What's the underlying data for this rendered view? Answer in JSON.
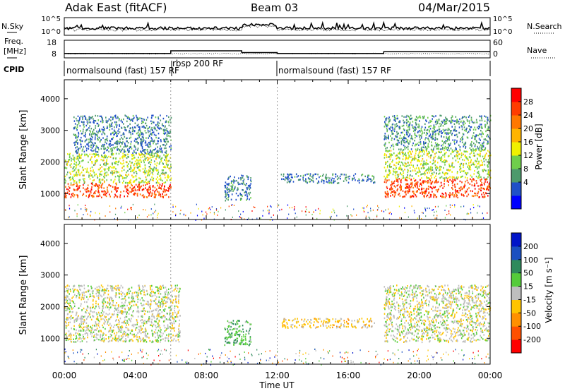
{
  "header": {
    "station": "Adak East (fitACF)",
    "beam": "Beam 03",
    "date": "04/Mar/2015"
  },
  "noise_panel": {
    "left_label": "N.Sky",
    "right_label": "N.Search",
    "ticks_left": [
      "10^5",
      "10^0"
    ],
    "ticks_right": [
      "10^5",
      "10^0"
    ]
  },
  "freq_panel": {
    "left_label_1": "Freq.",
    "left_label_2": "[MHz]",
    "ticks_left": [
      "18",
      "8"
    ],
    "right_label": "Nave",
    "ticks_right": [
      "60",
      "0"
    ]
  },
  "cpid": {
    "label": "CPID",
    "segments": [
      {
        "name": "normalsound (fast) 157 RF",
        "start_h": 0,
        "end_h": 6
      },
      {
        "name": "rbsp 200 RF",
        "start_h": 6,
        "end_h": 12
      },
      {
        "name": "normalsound (fast) 157 RF",
        "start_h": 12,
        "end_h": 24
      }
    ]
  },
  "axes": {
    "x_ticks": [
      "00:00",
      "04:00",
      "08:00",
      "12:00",
      "16:00",
      "20:00",
      "00:00"
    ],
    "x_label": "Time UT",
    "y_label": "Slant Range [km]",
    "y_ticks": [
      "1000",
      "2000",
      "3000",
      "4000"
    ]
  },
  "power_colorbar": {
    "label": "Power [dB]",
    "ticks": [
      "4",
      "8",
      "12",
      "16",
      "20",
      "24",
      "28"
    ],
    "colors": [
      "#0000ff",
      "#2050c8",
      "#4d9a6c",
      "#6fce4b",
      "#f0f000",
      "#ffb400",
      "#ff7800",
      "#ff3c00",
      "#ff0000"
    ]
  },
  "velocity_colorbar": {
    "label": "Velocity [m s⁻¹]",
    "ticks": [
      "200",
      "100",
      "50",
      "15",
      "-15",
      "-50",
      "-100",
      "-200"
    ],
    "colors": [
      "#0014c8",
      "#1a4fc0",
      "#2f8a5c",
      "#55cc3a",
      "#bebebe",
      "#ffc400",
      "#ff9000",
      "#ff5000",
      "#ff0000"
    ]
  },
  "chart_data": {
    "type": "heatmap",
    "title": "Adak East (fitACF) Beam 03 04/Mar/2015",
    "xlabel": "Time UT",
    "ylabel": "Slant Range [km]",
    "xlim": [
      0,
      24
    ],
    "ylim": [
      180,
      4600
    ],
    "panels": [
      {
        "name": "Power",
        "unit": "dB",
        "colorbar_ticks": [
          4,
          8,
          12,
          16,
          20,
          24,
          28
        ],
        "regions": [
          {
            "t0": 0,
            "t1": 6,
            "r0": 900,
            "r1": 1350,
            "value": 28
          },
          {
            "t0": 0,
            "t1": 6,
            "r0": 1350,
            "r1": 2300,
            "value": 14
          },
          {
            "t0": 0.5,
            "t1": 6,
            "r0": 2300,
            "r1": 3500,
            "value": 6
          },
          {
            "t0": 9,
            "t1": 10.5,
            "r0": 800,
            "r1": 1600,
            "value": 6
          },
          {
            "t0": 12.2,
            "t1": 17.5,
            "r0": 1350,
            "r1": 1650,
            "value": 6
          },
          {
            "t0": 18,
            "t1": 24,
            "r0": 900,
            "r1": 1500,
            "value": 28
          },
          {
            "t0": 18,
            "t1": 24,
            "r0": 1500,
            "r1": 2400,
            "value": 14
          },
          {
            "t0": 18,
            "t1": 24,
            "r0": 2400,
            "r1": 3500,
            "value": 8
          }
        ]
      },
      {
        "name": "Velocity",
        "unit": "m s⁻¹",
        "colorbar_ticks": [
          200,
          100,
          50,
          15,
          -15,
          -50,
          -100,
          -200
        ],
        "regions": [
          {
            "t0": 0,
            "t1": 6.5,
            "r0": 900,
            "r1": 2700,
            "value": 0
          },
          {
            "t0": 9,
            "t1": 10.5,
            "r0": 800,
            "r1": 1600,
            "value": 40
          },
          {
            "t0": 12.2,
            "t1": 17.5,
            "r0": 1350,
            "r1": 1650,
            "value": -30
          },
          {
            "t0": 18,
            "t1": 24,
            "r0": 900,
            "r1": 2700,
            "value": 0
          }
        ]
      }
    ],
    "frequency_mhz": [
      {
        "t0": 0,
        "t1": 6,
        "value": 10.5
      },
      {
        "t0": 6,
        "t1": 10,
        "value": 12
      },
      {
        "t0": 10,
        "t1": 12,
        "value": 11
      },
      {
        "t0": 12,
        "t1": 18,
        "value": 10.5
      },
      {
        "t0": 18,
        "t1": 24,
        "value": 11.5
      }
    ]
  }
}
